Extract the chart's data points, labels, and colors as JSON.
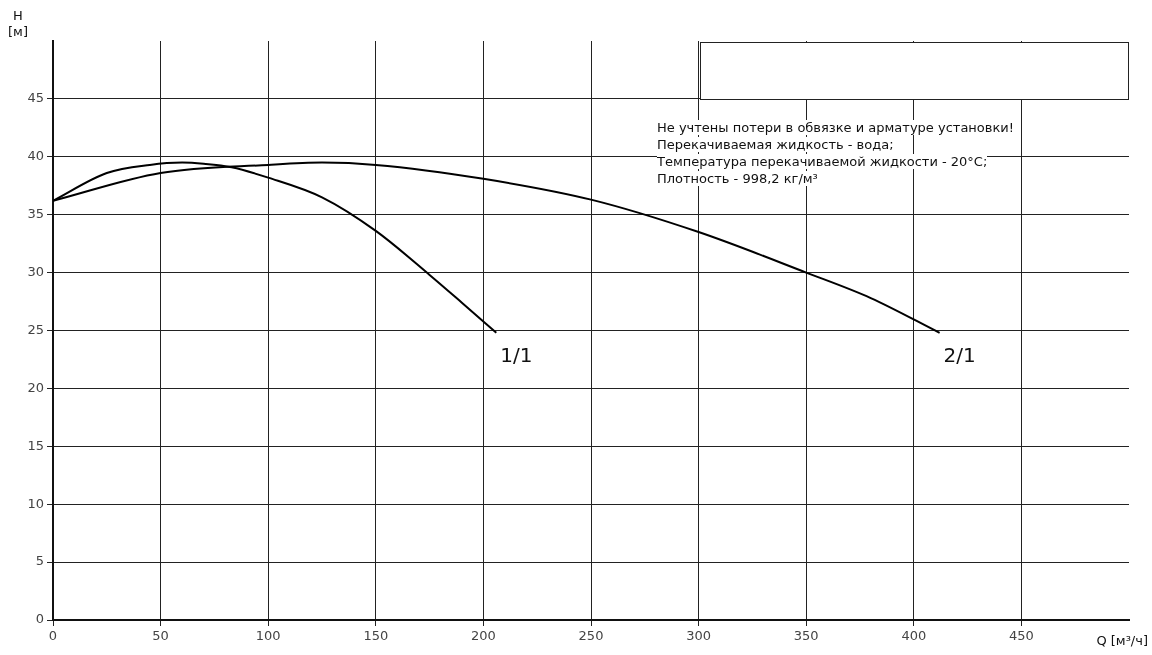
{
  "chart_data": {
    "type": "line",
    "xlabel": "Q [м³/ч]",
    "ylabel": "H\n[м]",
    "series": [
      {
        "name": "1/1",
        "color": "#000000",
        "x": [
          0,
          25,
          45,
          60,
          70,
          83,
          100,
          125,
          150,
          175,
          190,
          206
        ],
        "values": [
          36.2,
          38.6,
          39.3,
          39.5,
          39.4,
          39.1,
          38.2,
          36.5,
          33.6,
          29.8,
          27.4,
          24.8
        ]
      },
      {
        "name": "2/1",
        "color": "#000000",
        "x": [
          0,
          50,
          100,
          125,
          150,
          200,
          250,
          300,
          350,
          380,
          412
        ],
        "values": [
          36.2,
          38.6,
          39.3,
          39.5,
          39.3,
          38.1,
          36.3,
          33.5,
          30,
          27.8,
          24.8
        ]
      }
    ],
    "xlim": [
      0,
      500
    ],
    "xticks": [
      0,
      50,
      100,
      150,
      200,
      250,
      300,
      350,
      400,
      450
    ],
    "ylim": [
      0,
      50
    ],
    "yticks": [
      0,
      5,
      10,
      15,
      20,
      25,
      30,
      35,
      40,
      45
    ],
    "grid": true,
    "legend": false,
    "marker": "none",
    "line_style": "solid",
    "annotations": [
      "Не учтены потери в обвязке и арматуре установки!",
      "Перекачиваемая жидкость - вода;",
      "Температура перекачиваемой жидкости - 20°C;",
      "Плотность - 998,2 кг/м³"
    ]
  }
}
